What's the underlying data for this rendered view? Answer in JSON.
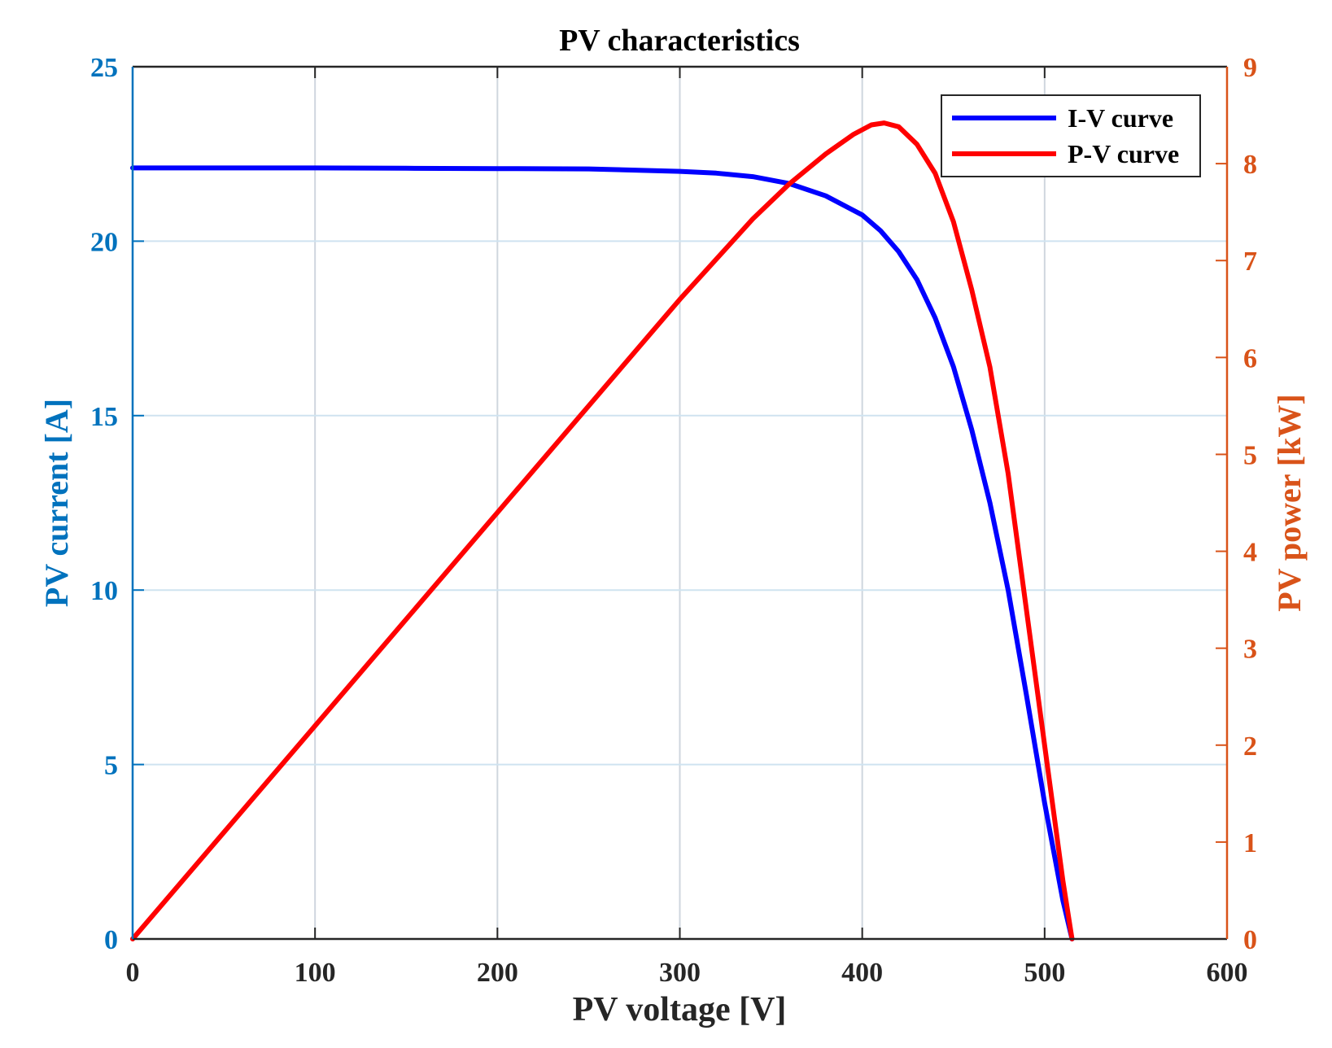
{
  "chart_data": {
    "type": "line",
    "title": "PV characteristics",
    "xlabel": "PV voltage [V]",
    "ylabel_left": "PV current [A]",
    "ylabel_right": "PV power [kW]",
    "xlim": [
      0,
      600
    ],
    "ylim_left": [
      0,
      25
    ],
    "ylim_right": [
      0,
      9
    ],
    "xticks": [
      "0",
      "100",
      "200",
      "300",
      "400",
      "500",
      "600"
    ],
    "yticks_left": [
      "0",
      "5",
      "10",
      "15",
      "20",
      "25"
    ],
    "yticks_right": [
      "0",
      "1",
      "2",
      "3",
      "4",
      "5",
      "6",
      "7",
      "8",
      "9"
    ],
    "grid": true,
    "legend_position": "top-right",
    "series": [
      {
        "name": "I-V curve",
        "axis": "left",
        "color": "#0000FF",
        "x": [
          0,
          50,
          100,
          150,
          200,
          250,
          300,
          320,
          340,
          360,
          380,
          400,
          410,
          420,
          430,
          440,
          450,
          460,
          470,
          480,
          490,
          500,
          510,
          515
        ],
        "y": [
          22.1,
          22.1,
          22.1,
          22.09,
          22.08,
          22.07,
          22.0,
          21.95,
          21.85,
          21.65,
          21.3,
          20.75,
          20.3,
          19.7,
          18.9,
          17.8,
          16.4,
          14.6,
          12.5,
          10.0,
          7.0,
          3.9,
          1.1,
          0.0
        ]
      },
      {
        "name": "P-V curve",
        "axis": "right",
        "color": "#FF0000",
        "x": [
          0,
          50,
          100,
          150,
          200,
          250,
          300,
          340,
          360,
          380,
          395,
          405,
          412,
          420,
          430,
          440,
          450,
          460,
          470,
          480,
          490,
          500,
          510,
          515
        ],
        "y": [
          0,
          1.1,
          2.2,
          3.3,
          4.4,
          5.5,
          6.6,
          7.43,
          7.79,
          8.1,
          8.3,
          8.4,
          8.42,
          8.38,
          8.2,
          7.9,
          7.4,
          6.7,
          5.9,
          4.8,
          3.4,
          2.0,
          0.6,
          0.0
        ]
      }
    ]
  },
  "legend": {
    "iv_label": "I-V curve",
    "pv_label": "P-V curve"
  }
}
